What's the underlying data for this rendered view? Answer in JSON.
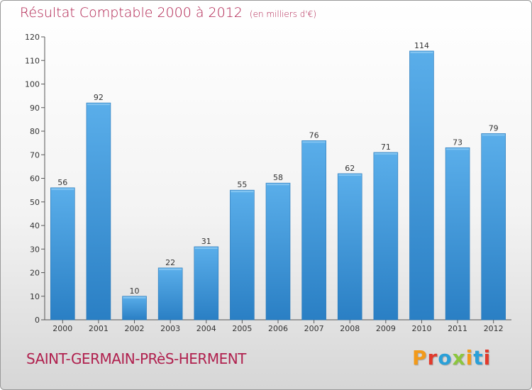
{
  "header": {
    "title": "Résultat Comptable 2000 à 2012",
    "subtitle": "(en milliers d'€)"
  },
  "footer": {
    "place": "SAINT-GERMAIN-PRèS-HERMENT",
    "logo_text": "Proxiti",
    "logo_letters": [
      "P",
      "r",
      "o",
      "x",
      "i",
      "t",
      "i"
    ],
    "logo_colors": [
      "#f29a1a",
      "#e23a2c",
      "#2aa0d8",
      "#8cc63e",
      "#f29a1a",
      "#2aa0d8",
      "#e23a2c"
    ]
  },
  "colors": {
    "bar_light": "#5aaeea",
    "bar_dark": "#2a7fc4",
    "accent": "#b0204e"
  },
  "chart_data": {
    "type": "bar",
    "categories": [
      "2000",
      "2001",
      "2002",
      "2003",
      "2004",
      "2005",
      "2006",
      "2007",
      "2008",
      "2009",
      "2010",
      "2011",
      "2012"
    ],
    "values": [
      56,
      92,
      10,
      22,
      31,
      55,
      58,
      76,
      62,
      71,
      114,
      73,
      79
    ],
    "title": "Résultat Comptable 2000 à 2012",
    "subtitle": "(en milliers d'€)",
    "xlabel": "",
    "ylabel": "",
    "ylim": [
      0,
      120
    ],
    "yticks": [
      0,
      10,
      20,
      30,
      40,
      50,
      60,
      70,
      80,
      90,
      100,
      110,
      120
    ],
    "grid": false,
    "data_labels": true
  }
}
